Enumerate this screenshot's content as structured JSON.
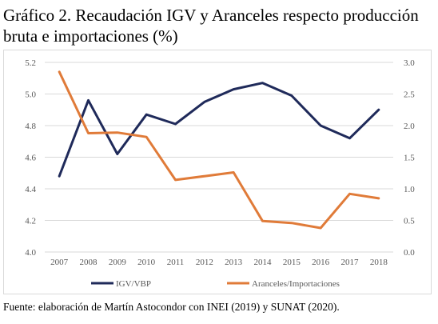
{
  "title": "Gráfico 2. Recaudación IGV y Aranceles respecto producción bruta e importaciones (%)",
  "source": "Fuente: elaboración de Martín Astocondor con INEI (2019) y SUNAT (2020).",
  "chart_data": {
    "type": "line",
    "title": "Gráfico 2. Recaudación IGV y Aranceles respecto producción bruta e importaciones (%)",
    "categories": [
      "2007",
      "2008",
      "2009",
      "2010",
      "2011",
      "2012",
      "2013",
      "2014",
      "2015",
      "2016",
      "2017",
      "2018"
    ],
    "series": [
      {
        "name": "IGV/VBP",
        "axis": "left",
        "color": "#1f2a5a",
        "values": [
          4.48,
          4.96,
          4.62,
          4.87,
          4.81,
          4.95,
          5.03,
          5.07,
          4.99,
          4.8,
          4.72,
          4.9
        ]
      },
      {
        "name": "Aranceles/Importaciones",
        "axis": "right",
        "color": "#e07b39",
        "values": [
          2.85,
          1.88,
          1.89,
          1.82,
          1.14,
          1.2,
          1.26,
          0.49,
          0.46,
          0.38,
          0.92,
          0.85
        ]
      }
    ],
    "y_left": {
      "ylim": [
        4.0,
        5.2
      ],
      "ticks": [
        "4.0",
        "4.2",
        "4.4",
        "4.6",
        "4.8",
        "5.0",
        "5.2"
      ]
    },
    "y_right": {
      "ylim": [
        0.0,
        3.0
      ],
      "ticks": [
        "0.0",
        "0.5",
        "1.0",
        "1.5",
        "2.0",
        "2.5",
        "3.0"
      ]
    },
    "grid": true,
    "legend_position": "bottom"
  }
}
